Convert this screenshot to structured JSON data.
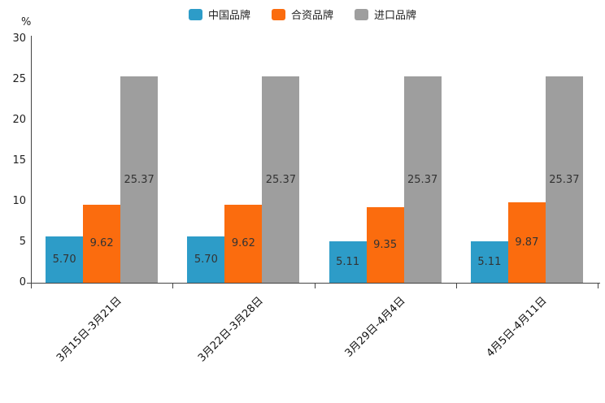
{
  "chart_data": {
    "type": "bar",
    "title": "",
    "unit": "%",
    "categories": [
      "3月15日-3月21日",
      "3月22日-3月28日",
      "3月29日-4月4日",
      "4月5日-4月11日"
    ],
    "series": [
      {
        "name": "中国品牌",
        "color": "#2d9cc8",
        "values": [
          5.7,
          5.7,
          5.11,
          5.11
        ]
      },
      {
        "name": "合资品牌",
        "color": "#fb6c0e",
        "values": [
          9.62,
          9.62,
          9.35,
          9.87
        ]
      },
      {
        "name": "进口品牌",
        "color": "#9e9e9e",
        "values": [
          25.37,
          25.37,
          25.37,
          25.37
        ]
      }
    ],
    "ylim": [
      0,
      30
    ],
    "yticks": [
      0,
      5,
      10,
      15,
      20,
      25,
      30
    ],
    "value_label_decimals": 2,
    "grid": false,
    "legend_position": "top"
  }
}
